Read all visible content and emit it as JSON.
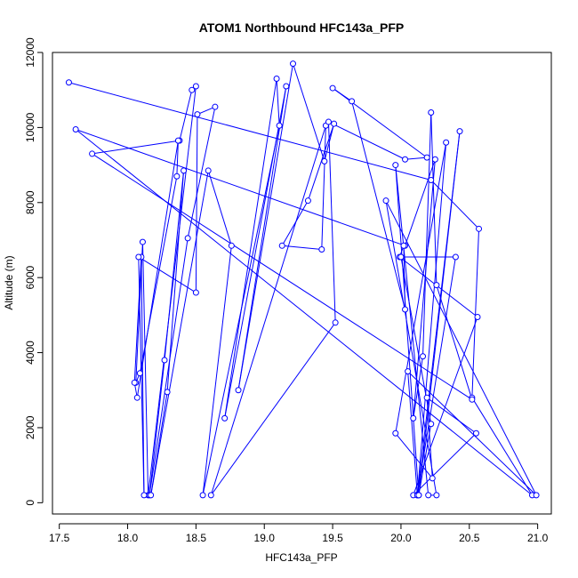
{
  "chart_data": {
    "type": "line",
    "title": "ATOM1 Northbound HFC143a_PFP",
    "xlabel": "HFC143a_PFP",
    "ylabel": "Altitude (m)",
    "xlim": [
      17.45,
      21.1
    ],
    "ylim": [
      -300,
      12000
    ],
    "x_ticks": [
      "17.5",
      "18.0",
      "18.5",
      "19.0",
      "19.5",
      "20.0",
      "20.5",
      "21.0"
    ],
    "x_tick_values": [
      17.5,
      18.0,
      18.5,
      19.0,
      19.5,
      20.0,
      20.5,
      21.0
    ],
    "y_ticks": [
      "0",
      "2000",
      "4000",
      "6000",
      "8000",
      "10000",
      "12000"
    ],
    "y_tick_values": [
      0,
      2000,
      4000,
      6000,
      8000,
      10000,
      12000
    ],
    "grid": false,
    "series": [
      {
        "color": "#0000ff",
        "marker": "open-circle",
        "x": [
          17.57,
          20.22,
          20.57,
          20.52,
          20.96,
          17.62,
          20.03,
          20.25,
          20.09,
          20.16,
          20.22,
          20.26,
          20.52,
          17.74,
          18.38,
          18.47,
          18.5,
          18.15,
          18.11,
          18.06,
          18.09,
          18.36,
          18.37,
          18.07,
          18.05,
          18.1,
          18.12,
          18.08,
          18.5,
          18.51,
          18.64,
          18.44,
          18.16,
          18.27,
          18.41,
          18.29,
          18.17,
          18.59,
          18.76,
          18.55,
          19.11,
          19.09,
          18.71,
          19.16,
          18.81,
          19.21,
          19.44,
          19.51,
          19.32,
          19.13,
          19.42,
          19.45,
          18.61,
          19.52,
          19.47,
          20.03,
          20.19,
          19.5,
          19.64,
          20.03,
          20.02,
          19.99,
          20.56,
          20.09,
          20.55,
          20.19,
          20.23,
          19.96,
          20.33,
          20.12,
          20.43,
          20.13,
          20.22,
          20.0,
          20.4,
          20.12,
          20.05,
          20.99,
          19.89,
          20.26,
          20.2,
          19.96,
          20.13
        ],
        "y": [
          11200,
          8600,
          7300,
          2800,
          200,
          9950,
          6850,
          9150,
          2250,
          3900,
          10400,
          5800,
          2750,
          9300,
          9650,
          11000,
          11100,
          200,
          6950,
          3200,
          3450,
          8700,
          9650,
          2800,
          3200,
          6550,
          200,
          6550,
          5600,
          10350,
          10550,
          7050,
          200,
          3800,
          8850,
          2950,
          200,
          8850,
          6850,
          200,
          10050,
          11300,
          2250,
          11100,
          3000,
          11700,
          9100,
          10100,
          8050,
          6850,
          6750,
          10050,
          200,
          4800,
          10150,
          9150,
          9200,
          11050,
          10700,
          5150,
          6850,
          6550,
          4950,
          200,
          1850,
          2800,
          650,
          1850,
          9600,
          200,
          9900,
          200,
          2100,
          6550,
          6550,
          200,
          3500,
          200,
          8050,
          200,
          200,
          9000,
          200
        ]
      }
    ]
  }
}
